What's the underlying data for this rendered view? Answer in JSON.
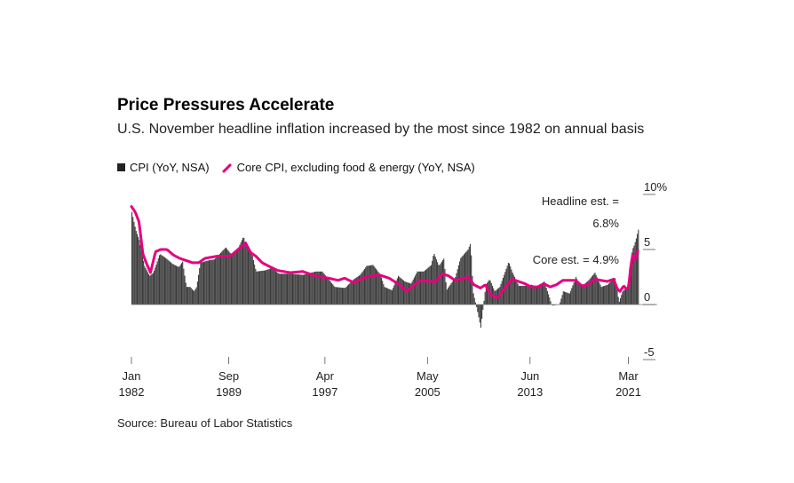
{
  "title": "Price Pressures Accelerate",
  "subtitle": "U.S. November headline inflation increased by the most since 1982 on annual basis",
  "legend": {
    "cpi": "CPI (YoY, NSA)",
    "core": "Core CPI, excluding food & energy (YoY, NSA)"
  },
  "source": "Source: Bureau of Labor Statistics",
  "colors": {
    "bars": "#3a3a3a",
    "core_line": "#e6007e"
  },
  "chart_data": {
    "type": "bar",
    "title": "Price Pressures Accelerate",
    "ylim": [
      -5,
      10
    ],
    "y_ticks": [
      "10%",
      "5",
      "0",
      "-5"
    ],
    "y_tick_values": [
      10,
      5,
      0,
      -5
    ],
    "x_ticks": [
      {
        "month": "Jan",
        "year": "1982",
        "x": 1982.0
      },
      {
        "month": "Sep",
        "year": "1989",
        "x": 1989.667
      },
      {
        "month": "Apr",
        "year": "1997",
        "x": 1997.25
      },
      {
        "month": "May",
        "year": "2005",
        "x": 2005.333
      },
      {
        "month": "Jun",
        "year": "2013",
        "x": 2013.417
      },
      {
        "month": "Mar",
        "year": "2021",
        "x": 2021.167
      }
    ],
    "x_range": [
      1982.0,
      2021.9
    ],
    "grid": false,
    "legend_position": "top-left",
    "annotations": [
      {
        "text_line1": "Headline est. =",
        "text_line2": "6.8%"
      },
      {
        "text": "Core est. = 4.9%"
      }
    ],
    "series": [
      {
        "name": "CPI (YoY, NSA)",
        "style": "bars",
        "anchors": [
          [
            1982.0,
            8.4
          ],
          [
            1982.3,
            6.8
          ],
          [
            1982.6,
            5.8
          ],
          [
            1983.0,
            3.5
          ],
          [
            1983.4,
            2.6
          ],
          [
            1983.7,
            2.9
          ],
          [
            1984.2,
            4.6
          ],
          [
            1984.7,
            4.2
          ],
          [
            1985.2,
            3.7
          ],
          [
            1985.7,
            3.4
          ],
          [
            1986.0,
            3.9
          ],
          [
            1986.3,
            1.6
          ],
          [
            1986.6,
            1.6
          ],
          [
            1986.9,
            1.2
          ],
          [
            1987.1,
            1.6
          ],
          [
            1987.4,
            3.8
          ],
          [
            1988.0,
            4.0
          ],
          [
            1988.5,
            4.1
          ],
          [
            1989.0,
            4.7
          ],
          [
            1989.4,
            5.2
          ],
          [
            1989.8,
            4.6
          ],
          [
            1990.3,
            4.9
          ],
          [
            1990.8,
            6.2
          ],
          [
            1991.0,
            5.3
          ],
          [
            1991.4,
            4.9
          ],
          [
            1991.8,
            3.0
          ],
          [
            1992.5,
            3.1
          ],
          [
            1993.0,
            3.3
          ],
          [
            1993.6,
            2.8
          ],
          [
            1994.5,
            2.8
          ],
          [
            1995.5,
            2.7
          ],
          [
            1996.5,
            3.0
          ],
          [
            1997.0,
            3.0
          ],
          [
            1997.5,
            2.3
          ],
          [
            1998.0,
            1.6
          ],
          [
            1998.8,
            1.5
          ],
          [
            1999.5,
            2.3
          ],
          [
            2000.0,
            2.7
          ],
          [
            2000.5,
            3.5
          ],
          [
            2001.0,
            3.6
          ],
          [
            2001.6,
            2.7
          ],
          [
            2001.9,
            1.6
          ],
          [
            2002.5,
            1.3
          ],
          [
            2003.0,
            2.6
          ],
          [
            2003.5,
            2.1
          ],
          [
            2004.0,
            1.9
          ],
          [
            2004.5,
            3.0
          ],
          [
            2005.0,
            3.0
          ],
          [
            2005.6,
            3.6
          ],
          [
            2005.8,
            4.7
          ],
          [
            2006.2,
            3.5
          ],
          [
            2006.6,
            4.2
          ],
          [
            2006.8,
            1.3
          ],
          [
            2007.5,
            2.5
          ],
          [
            2007.9,
            4.2
          ],
          [
            2008.5,
            5.0
          ],
          [
            2008.7,
            5.6
          ],
          [
            2008.9,
            1.1
          ],
          [
            2009.2,
            -0.4
          ],
          [
            2009.5,
            -2.1
          ],
          [
            2009.9,
            1.8
          ],
          [
            2010.2,
            2.3
          ],
          [
            2010.6,
            1.2
          ],
          [
            2011.0,
            1.6
          ],
          [
            2011.7,
            3.9
          ],
          [
            2012.0,
            2.9
          ],
          [
            2012.5,
            1.7
          ],
          [
            2013.0,
            1.7
          ],
          [
            2013.5,
            1.8
          ],
          [
            2014.0,
            1.6
          ],
          [
            2014.5,
            2.1
          ],
          [
            2014.9,
            0.7
          ],
          [
            2015.1,
            -0.1
          ],
          [
            2015.7,
            0.0
          ],
          [
            2016.0,
            1.2
          ],
          [
            2016.5,
            1.0
          ],
          [
            2017.0,
            2.5
          ],
          [
            2017.4,
            1.6
          ],
          [
            2018.0,
            2.2
          ],
          [
            2018.5,
            2.9
          ],
          [
            2019.0,
            1.6
          ],
          [
            2019.5,
            1.8
          ],
          [
            2019.9,
            2.3
          ],
          [
            2020.1,
            2.4
          ],
          [
            2020.4,
            0.2
          ],
          [
            2020.7,
            1.3
          ],
          [
            2021.0,
            1.4
          ],
          [
            2021.25,
            2.6
          ],
          [
            2021.35,
            4.2
          ],
          [
            2021.45,
            5.0
          ],
          [
            2021.6,
            5.4
          ],
          [
            2021.8,
            6.2
          ],
          [
            2021.9,
            6.8
          ]
        ]
      },
      {
        "name": "Core CPI, excluding food & energy (YoY, NSA)",
        "style": "line",
        "anchors": [
          [
            1982.0,
            8.9
          ],
          [
            1982.3,
            8.4
          ],
          [
            1982.6,
            7.5
          ],
          [
            1982.9,
            4.6
          ],
          [
            1983.2,
            3.7
          ],
          [
            1983.5,
            2.9
          ],
          [
            1983.9,
            4.8
          ],
          [
            1984.3,
            5.0
          ],
          [
            1984.8,
            5.0
          ],
          [
            1985.3,
            4.5
          ],
          [
            1985.8,
            4.2
          ],
          [
            1986.3,
            4.0
          ],
          [
            1986.8,
            3.8
          ],
          [
            1987.3,
            3.8
          ],
          [
            1987.8,
            4.2
          ],
          [
            1988.3,
            4.3
          ],
          [
            1988.8,
            4.4
          ],
          [
            1989.3,
            4.4
          ],
          [
            1989.8,
            4.4
          ],
          [
            1990.3,
            4.9
          ],
          [
            1990.7,
            5.3
          ],
          [
            1991.0,
            5.6
          ],
          [
            1991.4,
            4.7
          ],
          [
            1991.8,
            4.4
          ],
          [
            1992.3,
            3.8
          ],
          [
            1992.8,
            3.5
          ],
          [
            1993.5,
            3.1
          ],
          [
            1994.5,
            2.9
          ],
          [
            1995.5,
            3.0
          ],
          [
            1996.5,
            2.6
          ],
          [
            1997.5,
            2.4
          ],
          [
            1998.3,
            2.2
          ],
          [
            1998.8,
            2.4
          ],
          [
            1999.5,
            2.0
          ],
          [
            2000.5,
            2.5
          ],
          [
            2001.5,
            2.7
          ],
          [
            2002.3,
            2.4
          ],
          [
            2003.0,
            1.9
          ],
          [
            2003.7,
            1.2
          ],
          [
            2004.3,
            1.8
          ],
          [
            2004.8,
            2.2
          ],
          [
            2005.5,
            2.1
          ],
          [
            2006.0,
            2.1
          ],
          [
            2006.5,
            2.8
          ],
          [
            2007.0,
            2.6
          ],
          [
            2007.5,
            2.2
          ],
          [
            2008.0,
            2.3
          ],
          [
            2008.5,
            2.5
          ],
          [
            2009.0,
            1.8
          ],
          [
            2009.5,
            1.5
          ],
          [
            2009.9,
            1.8
          ],
          [
            2010.3,
            0.9
          ],
          [
            2010.8,
            0.6
          ],
          [
            2011.0,
            0.8
          ],
          [
            2011.5,
            1.6
          ],
          [
            2012.0,
            2.3
          ],
          [
            2012.5,
            2.1
          ],
          [
            2013.0,
            1.9
          ],
          [
            2013.5,
            1.6
          ],
          [
            2014.0,
            1.6
          ],
          [
            2014.5,
            1.9
          ],
          [
            2015.0,
            1.6
          ],
          [
            2015.5,
            1.8
          ],
          [
            2016.0,
            2.2
          ],
          [
            2016.5,
            2.2
          ],
          [
            2017.0,
            2.2
          ],
          [
            2017.5,
            1.7
          ],
          [
            2018.0,
            1.8
          ],
          [
            2018.5,
            2.3
          ],
          [
            2019.0,
            2.2
          ],
          [
            2019.5,
            2.1
          ],
          [
            2020.0,
            2.3
          ],
          [
            2020.3,
            1.4
          ],
          [
            2020.5,
            1.2
          ],
          [
            2020.8,
            1.7
          ],
          [
            2021.0,
            1.4
          ],
          [
            2021.2,
            1.6
          ],
          [
            2021.3,
            3.0
          ],
          [
            2021.4,
            3.8
          ],
          [
            2021.5,
            4.5
          ],
          [
            2021.7,
            4.0
          ],
          [
            2021.9,
            4.9
          ]
        ]
      }
    ]
  }
}
